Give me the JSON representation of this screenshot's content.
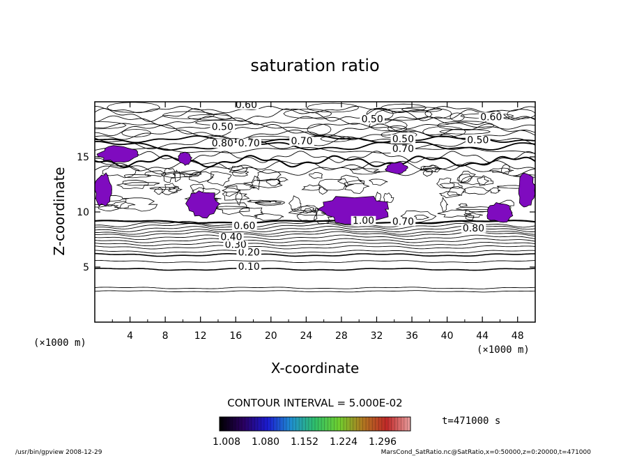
{
  "chart_data": {
    "type": "contour",
    "title": "saturation ratio",
    "xlabel": "X-coordinate",
    "ylabel": "Z-coordinate",
    "x_unit": "(×1000 m)",
    "z_unit": "(×1000 m)",
    "xlim": [
      0,
      50
    ],
    "ylim": [
      0,
      20
    ],
    "x_ticks": [
      4,
      8,
      12,
      16,
      20,
      24,
      28,
      32,
      36,
      40,
      44,
      48
    ],
    "y_ticks": [
      5,
      10,
      15
    ],
    "contour_interval_text": "CONTOUR INTERVAL = 5.000E-02",
    "contour_labels": [
      {
        "text": "0.10",
        "x": 17.5,
        "z": 4.8
      },
      {
        "text": "0.20",
        "x": 17.5,
        "z": 6.1
      },
      {
        "text": "0.30",
        "x": 16.0,
        "z": 6.8
      },
      {
        "text": "0.40",
        "x": 15.5,
        "z": 7.5
      },
      {
        "text": "0.60",
        "x": 17.0,
        "z": 8.5
      },
      {
        "text": "0.70",
        "x": 35.0,
        "z": 8.9
      },
      {
        "text": "0.80",
        "x": 43.0,
        "z": 8.3
      },
      {
        "text": "1.00",
        "x": 30.5,
        "z": 9.0
      },
      {
        "text": "0.60",
        "x": 17.2,
        "z": 19.5
      },
      {
        "text": "0.50",
        "x": 14.5,
        "z": 17.5
      },
      {
        "text": "0.50",
        "x": 31.5,
        "z": 18.2
      },
      {
        "text": "0.60",
        "x": 45.0,
        "z": 18.4
      },
      {
        "text": "0.70",
        "x": 23.5,
        "z": 16.2
      },
      {
        "text": "0.50",
        "x": 35.0,
        "z": 16.4
      },
      {
        "text": "0.50",
        "x": 43.5,
        "z": 16.3
      },
      {
        "text": "0.70",
        "x": 35.0,
        "z": 15.5
      },
      {
        "text": "0.80",
        "x": 14.5,
        "z": 16.0
      },
      {
        "text": "0.70",
        "x": 17.5,
        "z": 16.0
      }
    ],
    "supersaturated_regions": [
      {
        "xmin": 0.5,
        "xmax": 5.0,
        "zmin": 14.5,
        "zmax": 16.0
      },
      {
        "xmin": 0.0,
        "xmax": 2.0,
        "zmin": 10.5,
        "zmax": 13.5
      },
      {
        "xmin": 10.5,
        "xmax": 14.0,
        "zmin": 9.5,
        "zmax": 12.0
      },
      {
        "xmin": 25.5,
        "xmax": 33.5,
        "zmin": 9.0,
        "zmax": 11.5
      },
      {
        "xmin": 44.5,
        "xmax": 47.5,
        "zmin": 9.0,
        "zmax": 10.8
      },
      {
        "xmin": 48.0,
        "xmax": 50.0,
        "zmin": 10.5,
        "zmax": 13.5
      },
      {
        "xmin": 33.0,
        "xmax": 35.5,
        "zmin": 13.5,
        "zmax": 14.5
      },
      {
        "xmin": 9.5,
        "xmax": 11.0,
        "zmin": 14.3,
        "zmax": 15.5
      }
    ],
    "colorbar": {
      "tick_labels": [
        "1.008",
        "1.080",
        "1.152",
        "1.224",
        "1.296"
      ],
      "range": [
        1.008,
        1.296
      ],
      "colors": [
        "#000000",
        "#2a0060",
        "#1b1bd0",
        "#1f8fd0",
        "#2fbf6a",
        "#6fcf2f",
        "#b07820",
        "#c02828",
        "#e8a0a0"
      ]
    },
    "time_label": "t=471000 s",
    "region_color": "#7f0bbf"
  },
  "footer": {
    "left": "/usr/bin/gpview   2008-12-29",
    "right": "MarsCond_SatRatio.nc@SatRatio,x=0:50000,z=0:20000,t=471000"
  }
}
